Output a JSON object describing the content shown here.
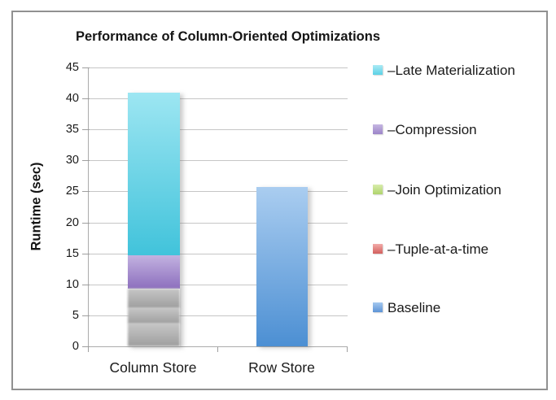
{
  "chart_data": {
    "type": "bar",
    "stacked": true,
    "title": "Performance of Column-Oriented Optimizations",
    "ylabel": "Runtime (sec)",
    "categories": [
      "Column Store",
      "Row Store"
    ],
    "ylim": [
      0,
      45
    ],
    "ytick_step": 5,
    "legend_position": "right",
    "grid": true,
    "bars": [
      {
        "category": "Column Store",
        "total": 41,
        "segments": [
          {
            "name": "Baseline",
            "value": 3.7,
            "grayed": true,
            "color_top": "#c6c6c6",
            "color_bottom": "#9e9e9e"
          },
          {
            "name": "Tuple-at-a-time",
            "value": 2.5,
            "grayed": true,
            "color_top": "#c6c6c6",
            "color_bottom": "#9e9e9e"
          },
          {
            "name": "Join Optimization",
            "value": 3.1,
            "grayed": true,
            "color_top": "#c6c6c6",
            "color_bottom": "#9e9e9e"
          },
          {
            "name": "Compression",
            "value": 5.4,
            "grayed": false,
            "color_top": "#c2b2e0",
            "color_bottom": "#8d6fbe"
          },
          {
            "name": "Late Materialization",
            "value": 26.3,
            "grayed": false,
            "color_top": "#9de6f2",
            "color_bottom": "#41c3db"
          }
        ]
      },
      {
        "category": "Row Store",
        "total": 25.7,
        "segments": [
          {
            "name": "Baseline",
            "value": 25.7,
            "grayed": false,
            "color_top": "#aacdf0",
            "color_bottom": "#4c8fd3"
          }
        ]
      }
    ],
    "legend": [
      {
        "label": "–Late Materialization",
        "color_top": "#abeaf5",
        "color_bottom": "#5bd1e5"
      },
      {
        "label": "–Compression",
        "color_top": "#c5b6e2",
        "color_bottom": "#9c85c8"
      },
      {
        "label": "–Join Optimization",
        "color_top": "#d8ecac",
        "color_bottom": "#afd46c"
      },
      {
        "label": "–Tuple-at-a-time",
        "color_top": "#f2aca9",
        "color_bottom": "#d25f5d"
      },
      {
        "label": "Baseline",
        "color_top": "#a5c8ef",
        "color_bottom": "#5d94d6"
      }
    ],
    "colors": {
      "gridline": "#c6c6c6",
      "axis": "#ababab",
      "frame_border": "#919191",
      "text": "#1a1a1a"
    }
  }
}
